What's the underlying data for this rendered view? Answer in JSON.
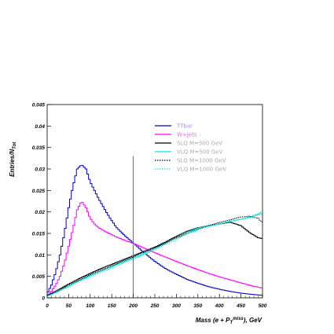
{
  "chart_data": {
    "type": "line",
    "style": "step-histogram",
    "xlabel_main": "Mass (e + P",
    "xlabel_sub": "T",
    "xlabel_sup": "miss",
    "xlabel_end": "), GeV",
    "ylabel_main": "Entries/N",
    "ylabel_sub": "Tot",
    "xlim": [
      0,
      500
    ],
    "ylim": [
      0,
      0.045
    ],
    "x_ticks": [
      0,
      50,
      100,
      150,
      200,
      250,
      300,
      350,
      400,
      450,
      500
    ],
    "x_tick_labels": [
      "0",
      "50",
      "100",
      "150",
      "200",
      "250",
      "300",
      "350",
      "400",
      "450",
      "500"
    ],
    "y_ticks": [
      0,
      0.005,
      0.01,
      0.015,
      0.02,
      0.025,
      0.03,
      0.035,
      0.04,
      0.045
    ],
    "y_tick_labels": [
      "0",
      "0.005",
      "0.01",
      "0.015",
      "0.02",
      "0.025",
      "0.03",
      "0.035",
      "0.04",
      "0.045"
    ],
    "vertical_line_x": 200,
    "legend_position": "top-right",
    "series": [
      {
        "name": "TTbar",
        "color": "#0000cc",
        "dash": "",
        "x": [
          0,
          10,
          20,
          30,
          40,
          50,
          60,
          70,
          80,
          90,
          100,
          110,
          120,
          140,
          160,
          180,
          200,
          225,
          250,
          275,
          300,
          325,
          350,
          375,
          400,
          425,
          450,
          475,
          500
        ],
        "y": [
          0.001,
          0.003,
          0.006,
          0.01,
          0.015,
          0.021,
          0.026,
          0.03,
          0.031,
          0.03,
          0.027,
          0.025,
          0.023,
          0.0195,
          0.0165,
          0.0145,
          0.0128,
          0.0105,
          0.0085,
          0.0068,
          0.0055,
          0.0043,
          0.0034,
          0.0026,
          0.002,
          0.0015,
          0.0011,
          0.0008,
          0.0006
        ]
      },
      {
        "name": "W+Jets",
        "color": "#ff00ff",
        "dash": "",
        "x": [
          0,
          10,
          20,
          30,
          40,
          50,
          60,
          70,
          80,
          90,
          100,
          110,
          120,
          140,
          160,
          180,
          200,
          225,
          250,
          275,
          300,
          325,
          350,
          375,
          400,
          425,
          450,
          475,
          500
        ],
        "y": [
          0.0005,
          0.0015,
          0.003,
          0.005,
          0.008,
          0.012,
          0.016,
          0.0205,
          0.0225,
          0.021,
          0.0185,
          0.0172,
          0.0163,
          0.0152,
          0.0142,
          0.0134,
          0.0127,
          0.0116,
          0.0105,
          0.0095,
          0.0085,
          0.0075,
          0.0066,
          0.0057,
          0.0049,
          0.0042,
          0.0035,
          0.0028,
          0.0023
        ]
      },
      {
        "name": "SLQ M=500 GeV",
        "color": "#000000",
        "dash": "",
        "x": [
          0,
          25,
          50,
          75,
          100,
          125,
          150,
          175,
          200,
          225,
          250,
          275,
          300,
          325,
          350,
          375,
          400,
          425,
          450,
          460,
          470,
          480,
          490,
          500
        ],
        "y": [
          0.0005,
          0.0018,
          0.0032,
          0.0045,
          0.0057,
          0.0068,
          0.0078,
          0.0088,
          0.0098,
          0.0108,
          0.0118,
          0.013,
          0.0143,
          0.0155,
          0.0163,
          0.0168,
          0.0172,
          0.0176,
          0.0168,
          0.016,
          0.0152,
          0.0146,
          0.014,
          0.0138
        ]
      },
      {
        "name": "VLQ M=500 GeV",
        "color": "#00e6e6",
        "dash": "",
        "x": [
          0,
          25,
          50,
          75,
          100,
          125,
          150,
          175,
          200,
          225,
          250,
          275,
          300,
          325,
          350,
          375,
          400,
          425,
          450,
          470,
          490,
          498,
          500
        ],
        "y": [
          0.0004,
          0.0015,
          0.0028,
          0.004,
          0.0052,
          0.0063,
          0.0073,
          0.0083,
          0.0093,
          0.0103,
          0.0115,
          0.0127,
          0.014,
          0.0152,
          0.0162,
          0.0168,
          0.0172,
          0.0178,
          0.0183,
          0.0188,
          0.0195,
          0.0199,
          0.0
        ]
      },
      {
        "name": "SLQ M=1000 GeV",
        "color": "#000000",
        "dash": "1.5,1.5",
        "x": [
          0,
          25,
          50,
          75,
          100,
          125,
          150,
          175,
          200,
          225,
          250,
          275,
          300,
          325,
          350,
          375,
          400,
          425,
          450,
          470,
          490,
          500
        ],
        "y": [
          0.0005,
          0.0016,
          0.003,
          0.0042,
          0.0053,
          0.0064,
          0.0075,
          0.0085,
          0.0095,
          0.0106,
          0.0117,
          0.0128,
          0.014,
          0.015,
          0.016,
          0.0168,
          0.0175,
          0.0182,
          0.0188,
          0.019,
          0.0185,
          0.0175
        ]
      },
      {
        "name": "VLQ M=1000 GeV",
        "color": "#00e6e6",
        "dash": "1.5,1.5",
        "x": [
          0,
          25,
          50,
          75,
          100,
          125,
          150,
          175,
          200,
          225,
          250,
          275,
          300,
          325,
          350,
          375,
          400,
          425,
          450,
          470,
          490,
          500
        ],
        "y": [
          0.0004,
          0.0014,
          0.0027,
          0.0039,
          0.005,
          0.006,
          0.007,
          0.008,
          0.009,
          0.0101,
          0.0112,
          0.0124,
          0.0136,
          0.0148,
          0.0158,
          0.0166,
          0.0172,
          0.0178,
          0.0183,
          0.0187,
          0.0192,
          0.0195
        ]
      }
    ]
  }
}
